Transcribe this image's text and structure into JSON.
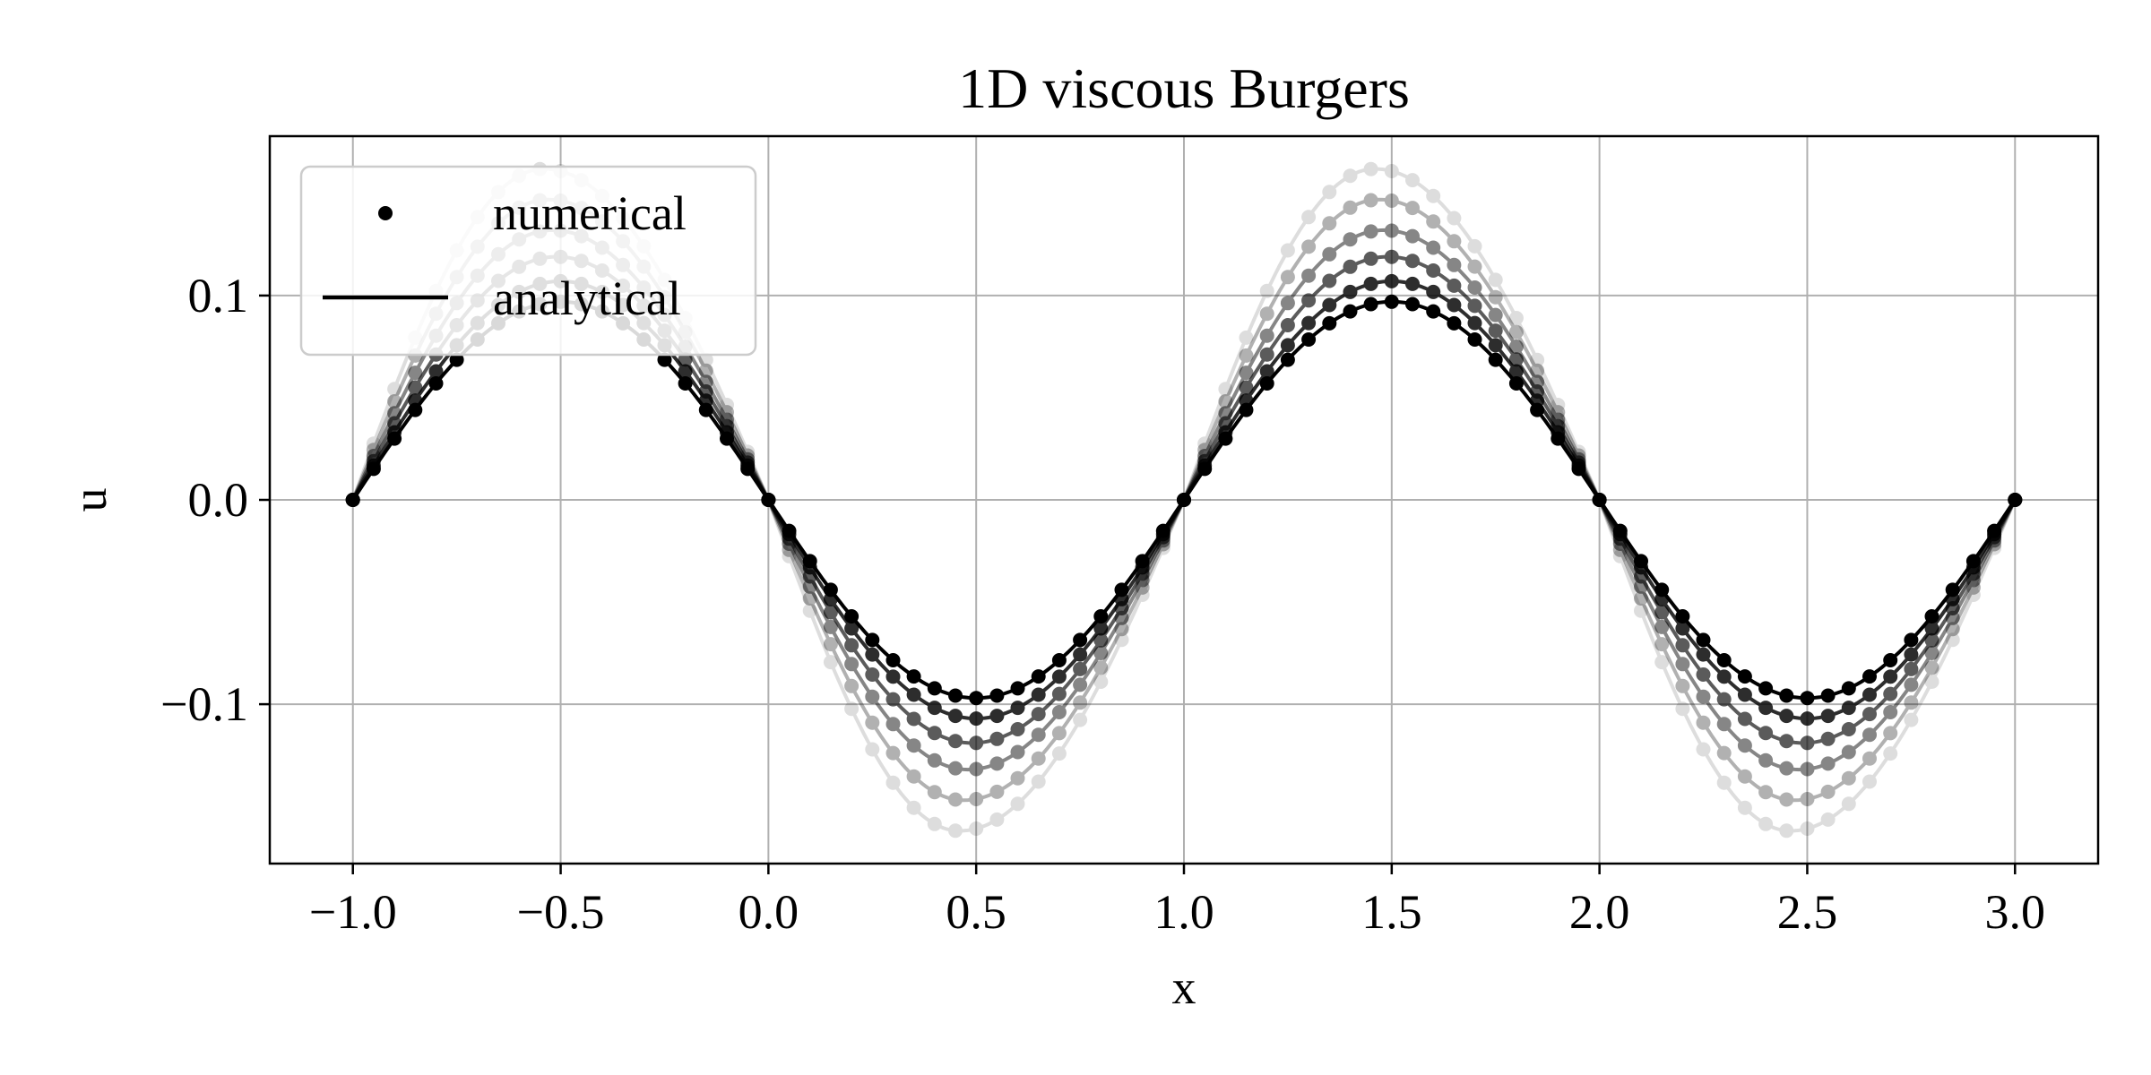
{
  "chart_data": {
    "type": "line",
    "title": "1D viscous Burgers",
    "xlabel": "x",
    "ylabel": "u",
    "xlim": [
      -1.2,
      3.2
    ],
    "ylim": [
      -0.178,
      0.178
    ],
    "xticks": [
      -1.0,
      -0.5,
      0.0,
      0.5,
      1.0,
      1.5,
      2.0,
      2.5,
      3.0
    ],
    "xtick_labels": [
      "−1.0",
      "−0.5",
      "0.0",
      "0.5",
      "1.0",
      "1.5",
      "2.0",
      "2.5",
      "3.0"
    ],
    "yticks": [
      -0.1,
      0.0,
      0.1
    ],
    "ytick_labels": [
      "−0.1",
      "0.0",
      "0.1"
    ],
    "grid": true,
    "legend": {
      "location": "upper-left",
      "entries": [
        {
          "label": "numerical",
          "marker": "dot"
        },
        {
          "label": "analytical",
          "marker": "line"
        }
      ]
    },
    "x_range": [
      -1.0,
      3.0
    ],
    "points_per_series": 81,
    "profile": "u(x) = -A * sin(pi * x) with the crest shifted toward the zero crossing at x = 1 and x = 3",
    "series": [
      {
        "amplitude": 0.162,
        "skew": 0.46,
        "opacity": 0.13
      },
      {
        "amplitude": 0.147,
        "skew": 0.47,
        "opacity": 0.3
      },
      {
        "amplitude": 0.132,
        "skew": 0.48,
        "opacity": 0.47
      },
      {
        "amplitude": 0.119,
        "skew": 0.49,
        "opacity": 0.64
      },
      {
        "amplitude": 0.107,
        "skew": 0.5,
        "opacity": 0.82
      },
      {
        "amplitude": 0.097,
        "skew": 0.5,
        "opacity": 1.0
      }
    ],
    "line_color": "#000000",
    "grid_color": "#b0b0b0"
  }
}
